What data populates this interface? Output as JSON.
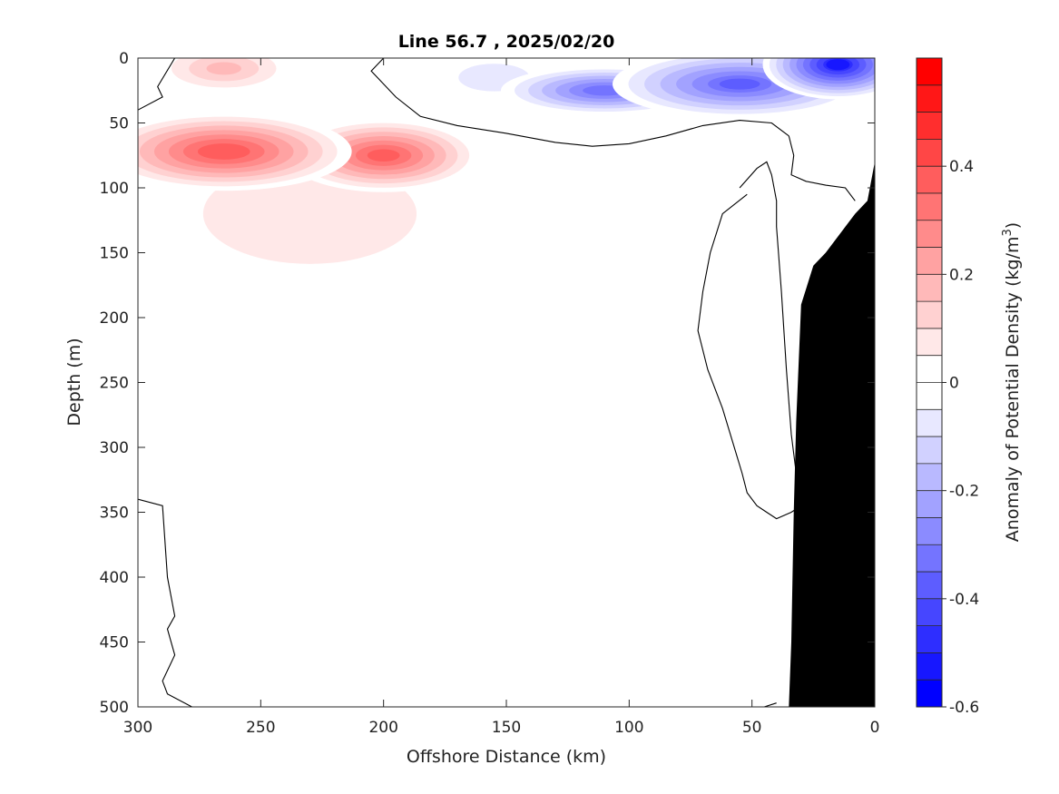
{
  "chart_data": {
    "type": "heatmap",
    "title": "Line 56.7 , 2025/02/20",
    "xlabel": "Offshore Distance (km)",
    "ylabel": "Depth (m)",
    "xlim": [
      300,
      0
    ],
    "ylim": [
      0,
      500
    ],
    "x_ticks": [
      300,
      250,
      200,
      150,
      100,
      50,
      0
    ],
    "y_ticks": [
      0,
      50,
      100,
      150,
      200,
      250,
      300,
      350,
      400,
      450,
      500
    ],
    "colorbar": {
      "label_prefix": "Anomaly of Potential Density (kg/m",
      "label_exp": "3",
      "label_suffix": ")",
      "range": [
        -0.6,
        0.6
      ],
      "levels": 24,
      "step": 0.05,
      "ticks": [
        {
          "value": 0.4,
          "label": "0.4"
        },
        {
          "value": 0.2,
          "label": "0.2"
        },
        {
          "value": 0.0,
          "label": "0"
        },
        {
          "value": -0.2,
          "label": "-0.2"
        },
        {
          "value": -0.4,
          "label": "-0.4"
        },
        {
          "value": -0.6,
          "label": "-0.6"
        }
      ],
      "neg_color": "#0000ff",
      "pos_color": "#ff0000",
      "mid_color": "#ffffff"
    },
    "features": [
      {
        "kind": "max",
        "x": 265,
        "y": 72,
        "value": 0.44,
        "rx": 55,
        "ry": 32
      },
      {
        "kind": "max",
        "x": 200,
        "y": 75,
        "value": 0.42,
        "rx": 42,
        "ry": 30
      },
      {
        "kind": "max",
        "x": 150,
        "y": 200,
        "value": 0.08,
        "rx": 90,
        "ry": 110
      },
      {
        "kind": "max",
        "x": 230,
        "y": 120,
        "value": 0.12,
        "rx": 90,
        "ry": 80
      },
      {
        "kind": "max",
        "x": 265,
        "y": 8,
        "value": 0.2,
        "rx": 32,
        "ry": 22
      },
      {
        "kind": "max",
        "x": 95,
        "y": 160,
        "value": 0.08,
        "rx": 18,
        "ry": 110
      },
      {
        "kind": "max",
        "x": 20,
        "y": 170,
        "value": 0.08,
        "rx": 28,
        "ry": 60
      },
      {
        "kind": "min",
        "x": 15,
        "y": 5,
        "value": -0.56,
        "rx": 32,
        "ry": 28
      },
      {
        "kind": "min",
        "x": 110,
        "y": 25,
        "value": -0.38,
        "rx": 45,
        "ry": 20
      },
      {
        "kind": "min",
        "x": 55,
        "y": 20,
        "value": -0.4,
        "rx": 55,
        "ry": 28
      },
      {
        "kind": "min",
        "x": 155,
        "y": 15,
        "value": -0.12,
        "rx": 30,
        "ry": 22
      },
      {
        "kind": "min",
        "x": 45,
        "y": 170,
        "value": -0.06,
        "rx": 8,
        "ry": 18
      }
    ],
    "contours": [
      {
        "level": 0,
        "x": [
          300,
          290,
          292,
          285,
          270,
          255,
          230,
          215,
          205
        ],
        "y": [
          40,
          30,
          22,
          0,
          0,
          0,
          0,
          0,
          0
        ]
      },
      {
        "level": 0,
        "x": [
          200,
          205,
          195,
          185,
          170,
          150,
          130,
          115,
          100,
          85,
          70,
          55,
          42,
          35
        ],
        "y": [
          0,
          10,
          30,
          45,
          52,
          58,
          65,
          68,
          66,
          60,
          52,
          48,
          50,
          60
        ]
      },
      {
        "level": 0,
        "x": [
          35,
          33,
          34,
          28,
          20,
          12,
          8
        ],
        "y": [
          60,
          75,
          90,
          95,
          98,
          100,
          110
        ]
      },
      {
        "level": 0,
        "x": [
          55,
          48,
          44,
          42,
          40,
          40,
          38,
          36,
          34,
          32,
          30,
          28,
          27
        ],
        "y": [
          100,
          85,
          80,
          90,
          110,
          130,
          180,
          240,
          290,
          320,
          340,
          345,
          350
        ]
      },
      {
        "level": 0,
        "x": [
          52,
          62,
          67,
          70,
          72,
          68,
          62,
          58,
          54,
          52,
          48,
          44,
          40,
          34,
          30
        ],
        "y": [
          105,
          120,
          150,
          180,
          210,
          240,
          270,
          295,
          320,
          335,
          345,
          350,
          355,
          350,
          345
        ]
      },
      {
        "level": 0,
        "x": [
          300,
          290,
          288,
          285,
          288,
          285,
          290,
          288,
          278,
          275
        ],
        "y": [
          340,
          345,
          400,
          430,
          440,
          460,
          480,
          490,
          500,
          500
        ]
      },
      {
        "level": 0,
        "x": [
          45,
          40
        ],
        "y": [
          500,
          497
        ]
      }
    ],
    "land": {
      "x": [
        0,
        0,
        0,
        3,
        8,
        12,
        20,
        25,
        30,
        32,
        33,
        34,
        35,
        0
      ],
      "y": [
        35,
        40,
        80,
        110,
        120,
        130,
        150,
        160,
        190,
        280,
        350,
        450,
        500,
        500
      ]
    }
  }
}
